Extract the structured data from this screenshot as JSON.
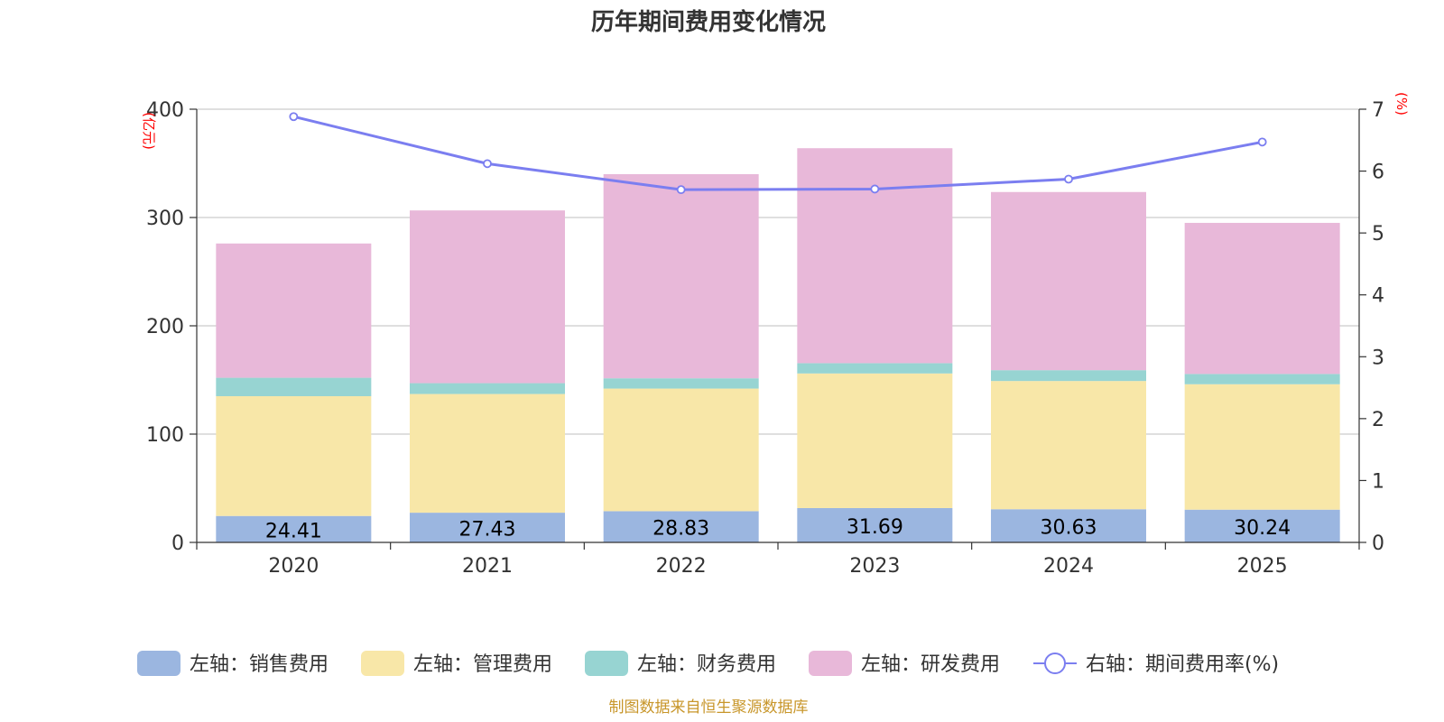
{
  "chart_data": {
    "type": "bar",
    "stacked": true,
    "title": "历年期间费用变化情况",
    "categories": [
      "2020",
      "2021",
      "2022",
      "2023",
      "2024",
      "2025"
    ],
    "left_axis": {
      "unit": "(亿元)",
      "ylim": [
        0,
        400
      ],
      "ticks": [
        "0",
        "100",
        "200",
        "300",
        "400"
      ]
    },
    "right_axis": {
      "unit": "(%)",
      "ylim": [
        0,
        7
      ],
      "ticks": [
        "0",
        "1",
        "2",
        "3",
        "4",
        "5",
        "6",
        "7"
      ]
    },
    "series": [
      {
        "name": "左轴：销售费用",
        "axis": "left",
        "color": "#9bb6e0",
        "values": [
          24.41,
          27.43,
          28.83,
          31.69,
          30.63,
          30.24
        ],
        "labels": [
          "24.41",
          "27.43",
          "28.83",
          "31.69",
          "30.63",
          "30.24"
        ]
      },
      {
        "name": "左轴：管理费用",
        "axis": "left",
        "color": "#f8e7a8",
        "values": [
          110.6,
          109.6,
          113.2,
          124.3,
          118.4,
          115.8
        ]
      },
      {
        "name": "左轴：财务费用",
        "axis": "left",
        "color": "#97d4d2",
        "values": [
          17.0,
          10.0,
          9.5,
          9.5,
          10.0,
          9.5
        ]
      },
      {
        "name": "左轴：研发费用",
        "axis": "left",
        "color": "#e8b8d9",
        "values": [
          124.0,
          159.5,
          188.5,
          198.5,
          164.5,
          139.5
        ]
      }
    ],
    "line": {
      "name": "右轴：期间费用率(%)",
      "axis": "right",
      "color": "#7b7ef0",
      "values": [
        6.88,
        6.12,
        5.7,
        5.71,
        5.87,
        6.47
      ]
    },
    "legend_position": "bottom",
    "grid": true
  },
  "footer": {
    "source": "制图数据来自恒生聚源数据库"
  }
}
